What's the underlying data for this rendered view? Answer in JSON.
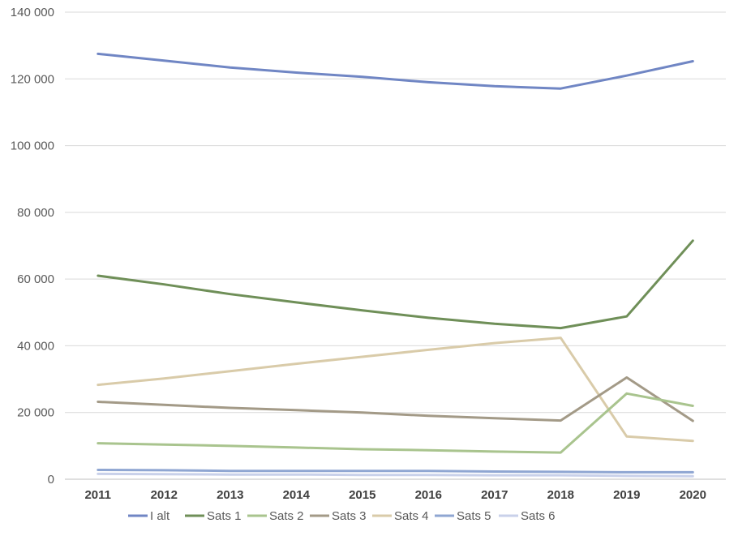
{
  "chart_data": {
    "type": "line",
    "title": "",
    "xlabel": "",
    "ylabel": "",
    "x": [
      "2011",
      "2012",
      "2013",
      "2014",
      "2015",
      "2016",
      "2017",
      "2018",
      "2019",
      "2020"
    ],
    "ylim": [
      0,
      140000
    ],
    "y_ticks": [
      0,
      20000,
      40000,
      60000,
      80000,
      100000,
      120000,
      140000
    ],
    "y_tick_labels": [
      "0",
      "20 000",
      "40 000",
      "60 000",
      "80 000",
      "100 000",
      "120 000",
      "140 000"
    ],
    "grid": true,
    "legend_position": "bottom",
    "series": [
      {
        "name": "I alt",
        "color": "#7086c4",
        "values": [
          127500,
          125500,
          123400,
          121900,
          120600,
          119000,
          117800,
          117100,
          121000,
          125300
        ]
      },
      {
        "name": "Sats 1",
        "color": "#6f8f58",
        "values": [
          61000,
          58400,
          55500,
          53000,
          50600,
          48400,
          46600,
          45300,
          48800,
          71500
        ]
      },
      {
        "name": "Sats 2",
        "color": "#a9c48e",
        "values": [
          10800,
          10400,
          10000,
          9500,
          9000,
          8700,
          8300,
          8000,
          25700,
          22000
        ]
      },
      {
        "name": "Sats 3",
        "color": "#a39a87",
        "values": [
          23200,
          22300,
          21400,
          20700,
          20000,
          19000,
          18300,
          17600,
          30500,
          17500
        ]
      },
      {
        "name": "Sats 4",
        "color": "#d9cba9",
        "values": [
          28300,
          30200,
          32400,
          34600,
          36700,
          38800,
          40800,
          42400,
          12800,
          11500
        ]
      },
      {
        "name": "Sats 5",
        "color": "#8fa6d2",
        "values": [
          2800,
          2700,
          2500,
          2500,
          2500,
          2500,
          2300,
          2200,
          2100,
          2100
        ]
      },
      {
        "name": "Sats 6",
        "color": "#c9d1ea",
        "values": [
          1600,
          1500,
          1400,
          1400,
          1300,
          1300,
          1200,
          1200,
          1000,
          900
        ]
      }
    ]
  }
}
